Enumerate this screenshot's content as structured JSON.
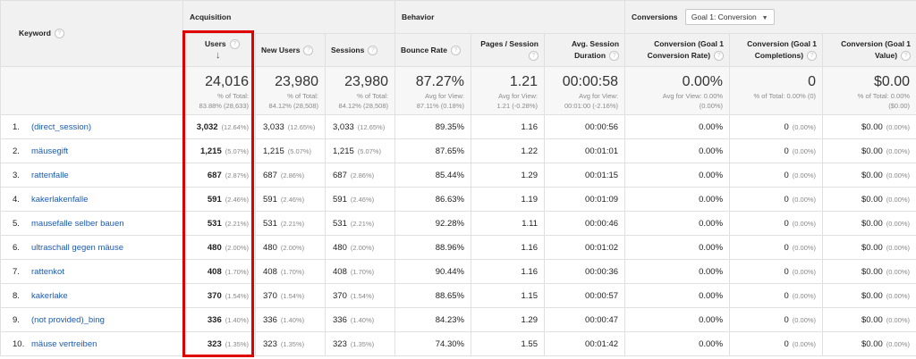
{
  "header": {
    "keyword_label": "Keyword",
    "groups": {
      "acquisition": "Acquisition",
      "behavior": "Behavior",
      "conversions": "Conversions"
    },
    "goal_select": "Goal 1: Conversion",
    "columns": {
      "users": "Users",
      "new_users": "New Users",
      "sessions": "Sessions",
      "bounce_rate": "Bounce Rate",
      "pages_session": "Pages / Session",
      "avg_duration_l1": "Avg. Session",
      "avg_duration_l2": "Duration",
      "conv_rate_l1": "Conversion (Goal 1",
      "conv_rate_l2": "Conversion Rate)",
      "completions_l1": "Conversion (Goal 1",
      "completions_l2": "Completions)",
      "value_l1": "Conversion (Goal 1",
      "value_l2": "Value)"
    },
    "help_glyph": "?",
    "sort_glyph": "↓"
  },
  "summary": {
    "users": {
      "value": "24,016",
      "sub1": "% of Total:",
      "sub2": "83.88% (28,633)"
    },
    "new_users": {
      "value": "23,980",
      "sub1": "% of Total:",
      "sub2": "84.12% (28,508)"
    },
    "sessions": {
      "value": "23,980",
      "sub1": "% of Total:",
      "sub2": "84.12% (28,508)"
    },
    "bounce_rate": {
      "value": "87.27%",
      "sub1": "Avg for View:",
      "sub2": "87.11% (0.18%)"
    },
    "pages_session": {
      "value": "1.21",
      "sub1": "Avg for View:",
      "sub2": "1.21 (-0.28%)"
    },
    "avg_duration": {
      "value": "00:00:58",
      "sub1": "Avg for View:",
      "sub2": "00:01:00 (-2.16%)"
    },
    "conv_rate": {
      "value": "0.00%",
      "sub1": "Avg for View: 0.00%",
      "sub2": "(0.00%)"
    },
    "completions": {
      "value": "0",
      "sub1": "% of Total: 0.00% (0)",
      "sub2": ""
    },
    "conv_value": {
      "value": "$0.00",
      "sub1": "% of Total: 0.00%",
      "sub2": "($0.00)"
    }
  },
  "rows": [
    {
      "idx": "1.",
      "keyword": "(direct_session)",
      "users": "3,032",
      "users_pct": "(12.64%)",
      "new_users": "3,033",
      "new_users_pct": "(12.65%)",
      "sessions": "3,033",
      "sessions_pct": "(12.65%)",
      "bounce_rate": "89.35%",
      "pages_session": "1.16",
      "avg_duration": "00:00:56",
      "conv_rate": "0.00%",
      "completions": "0",
      "completions_pct": "(0.00%)",
      "value": "$0.00",
      "value_pct": "(0.00%)"
    },
    {
      "idx": "2.",
      "keyword": "mäusegift",
      "users": "1,215",
      "users_pct": "(5.07%)",
      "new_users": "1,215",
      "new_users_pct": "(5.07%)",
      "sessions": "1,215",
      "sessions_pct": "(5.07%)",
      "bounce_rate": "87.65%",
      "pages_session": "1.22",
      "avg_duration": "00:01:01",
      "conv_rate": "0.00%",
      "completions": "0",
      "completions_pct": "(0.00%)",
      "value": "$0.00",
      "value_pct": "(0.00%)"
    },
    {
      "idx": "3.",
      "keyword": "rattenfalle",
      "users": "687",
      "users_pct": "(2.87%)",
      "new_users": "687",
      "new_users_pct": "(2.86%)",
      "sessions": "687",
      "sessions_pct": "(2.86%)",
      "bounce_rate": "85.44%",
      "pages_session": "1.29",
      "avg_duration": "00:01:15",
      "conv_rate": "0.00%",
      "completions": "0",
      "completions_pct": "(0.00%)",
      "value": "$0.00",
      "value_pct": "(0.00%)"
    },
    {
      "idx": "4.",
      "keyword": "kakerlakenfalle",
      "users": "591",
      "users_pct": "(2.46%)",
      "new_users": "591",
      "new_users_pct": "(2.46%)",
      "sessions": "591",
      "sessions_pct": "(2.46%)",
      "bounce_rate": "86.63%",
      "pages_session": "1.19",
      "avg_duration": "00:01:09",
      "conv_rate": "0.00%",
      "completions": "0",
      "completions_pct": "(0.00%)",
      "value": "$0.00",
      "value_pct": "(0.00%)"
    },
    {
      "idx": "5.",
      "keyword": "mausefalle selber bauen",
      "users": "531",
      "users_pct": "(2.21%)",
      "new_users": "531",
      "new_users_pct": "(2.21%)",
      "sessions": "531",
      "sessions_pct": "(2.21%)",
      "bounce_rate": "92.28%",
      "pages_session": "1.11",
      "avg_duration": "00:00:46",
      "conv_rate": "0.00%",
      "completions": "0",
      "completions_pct": "(0.00%)",
      "value": "$0.00",
      "value_pct": "(0.00%)"
    },
    {
      "idx": "6.",
      "keyword": "ultraschall gegen mäuse",
      "users": "480",
      "users_pct": "(2.00%)",
      "new_users": "480",
      "new_users_pct": "(2.00%)",
      "sessions": "480",
      "sessions_pct": "(2.00%)",
      "bounce_rate": "88.96%",
      "pages_session": "1.16",
      "avg_duration": "00:01:02",
      "conv_rate": "0.00%",
      "completions": "0",
      "completions_pct": "(0.00%)",
      "value": "$0.00",
      "value_pct": "(0.00%)"
    },
    {
      "idx": "7.",
      "keyword": "rattenkot",
      "users": "408",
      "users_pct": "(1.70%)",
      "new_users": "408",
      "new_users_pct": "(1.70%)",
      "sessions": "408",
      "sessions_pct": "(1.70%)",
      "bounce_rate": "90.44%",
      "pages_session": "1.16",
      "avg_duration": "00:00:36",
      "conv_rate": "0.00%",
      "completions": "0",
      "completions_pct": "(0.00%)",
      "value": "$0.00",
      "value_pct": "(0.00%)"
    },
    {
      "idx": "8.",
      "keyword": "kakerlake",
      "users": "370",
      "users_pct": "(1.54%)",
      "new_users": "370",
      "new_users_pct": "(1.54%)",
      "sessions": "370",
      "sessions_pct": "(1.54%)",
      "bounce_rate": "88.65%",
      "pages_session": "1.15",
      "avg_duration": "00:00:57",
      "conv_rate": "0.00%",
      "completions": "0",
      "completions_pct": "(0.00%)",
      "value": "$0.00",
      "value_pct": "(0.00%)"
    },
    {
      "idx": "9.",
      "keyword": "(not provided)_bing",
      "users": "336",
      "users_pct": "(1.40%)",
      "new_users": "336",
      "new_users_pct": "(1.40%)",
      "sessions": "336",
      "sessions_pct": "(1.40%)",
      "bounce_rate": "84.23%",
      "pages_session": "1.29",
      "avg_duration": "00:00:47",
      "conv_rate": "0.00%",
      "completions": "0",
      "completions_pct": "(0.00%)",
      "value": "$0.00",
      "value_pct": "(0.00%)"
    },
    {
      "idx": "10.",
      "keyword": "mäuse vertreiben",
      "users": "323",
      "users_pct": "(1.35%)",
      "new_users": "323",
      "new_users_pct": "(1.35%)",
      "sessions": "323",
      "sessions_pct": "(1.35%)",
      "bounce_rate": "74.30%",
      "pages_session": "1.55",
      "avg_duration": "00:01:42",
      "conv_rate": "0.00%",
      "completions": "0",
      "completions_pct": "(0.00%)",
      "value": "$0.00",
      "value_pct": "(0.00%)"
    }
  ],
  "colors": {
    "highlight": "#e00000",
    "link": "#1a5bb4",
    "header_bg": "#f1f1f1"
  }
}
